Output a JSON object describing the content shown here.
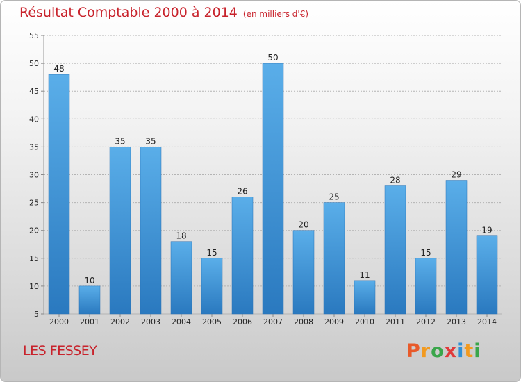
{
  "title": "Résultat Comptable 2000 à 2014",
  "subtitle": "(en milliers d'€)",
  "commune": "LES FESSEY",
  "logo": {
    "letters": [
      "P",
      "r",
      "o",
      "x",
      "i",
      "t",
      "i"
    ],
    "colors": [
      "#e85a2a",
      "#f29a1f",
      "#3aa64b",
      "#e03a3a",
      "#2f8fd6",
      "#f29a1f",
      "#3aa64b"
    ]
  },
  "chart_data": {
    "type": "bar",
    "categories": [
      "2000",
      "2001",
      "2002",
      "2003",
      "2004",
      "2005",
      "2006",
      "2007",
      "2008",
      "2009",
      "2010",
      "2011",
      "2012",
      "2013",
      "2014"
    ],
    "values": [
      48,
      10,
      35,
      35,
      18,
      15,
      26,
      50,
      20,
      25,
      11,
      28,
      15,
      29,
      19
    ],
    "yticks": [
      5,
      10,
      15,
      20,
      25,
      30,
      35,
      40,
      45,
      50,
      55
    ],
    "ylim": [
      5,
      55
    ],
    "title": "Résultat Comptable 2000 à 2014",
    "subtitle": "(en milliers d'€)",
    "xlabel": "",
    "ylabel": "",
    "grid": true,
    "bar_color": "#3d94d8"
  }
}
